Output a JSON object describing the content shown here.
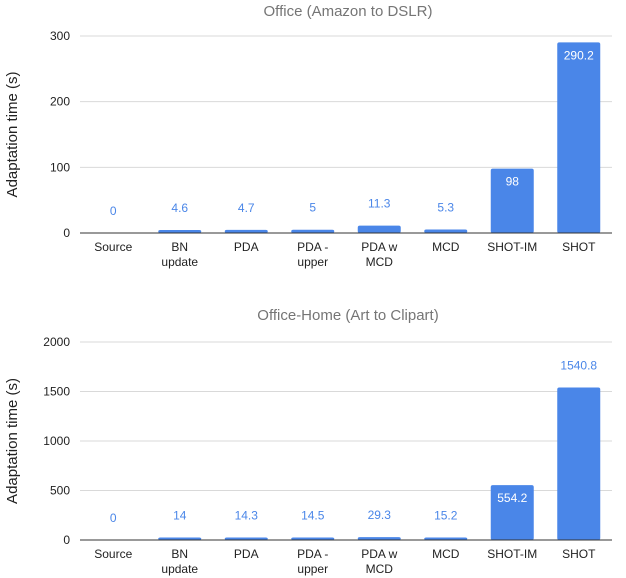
{
  "chart_data": [
    {
      "type": "bar",
      "title": "Office (Amazon to DSLR)",
      "ylabel": "Adaptation time (s)",
      "xlabel": "",
      "categories": [
        [
          "Source"
        ],
        [
          "BN",
          "update"
        ],
        [
          "PDA"
        ],
        [
          "PDA -",
          "upper"
        ],
        [
          "PDA w",
          "MCD"
        ],
        [
          "MCD"
        ],
        [
          "SHOT-IM"
        ],
        [
          "SHOT"
        ]
      ],
      "values": [
        0,
        4.6,
        4.7,
        5,
        11.3,
        5.3,
        98,
        290.2
      ],
      "value_labels": [
        "0",
        "4.6",
        "4.7",
        "5",
        "11.3",
        "5.3",
        "98",
        "290.2"
      ],
      "ylim": [
        0,
        300
      ],
      "yticks": [
        0,
        100,
        200,
        300
      ],
      "ytick_labels": [
        "0",
        "100",
        "200",
        "300"
      ],
      "grid": true,
      "legend": "none",
      "bar_color": "#4a86e8"
    },
    {
      "type": "bar",
      "title": "Office-Home (Art to Clipart)",
      "ylabel": "Adaptation time (s)",
      "xlabel": "",
      "categories": [
        [
          "Source"
        ],
        [
          "BN",
          "update"
        ],
        [
          "PDA"
        ],
        [
          "PDA -",
          "upper"
        ],
        [
          "PDA w",
          "MCD"
        ],
        [
          "MCD"
        ],
        [
          "SHOT-IM"
        ],
        [
          "SHOT"
        ]
      ],
      "values": [
        0,
        14,
        14.3,
        14.5,
        29.3,
        15.2,
        554.2,
        1540.8
      ],
      "value_labels": [
        "0",
        "14",
        "14.3",
        "14.5",
        "29.3",
        "15.2",
        "554.2",
        "1540.8"
      ],
      "ylim": [
        0,
        2000
      ],
      "yticks": [
        0,
        500,
        1000,
        1500,
        2000
      ],
      "ytick_labels": [
        "0",
        "500",
        "1000",
        "1500",
        "2000"
      ],
      "grid": true,
      "legend": "none",
      "bar_color": "#4a86e8"
    }
  ]
}
